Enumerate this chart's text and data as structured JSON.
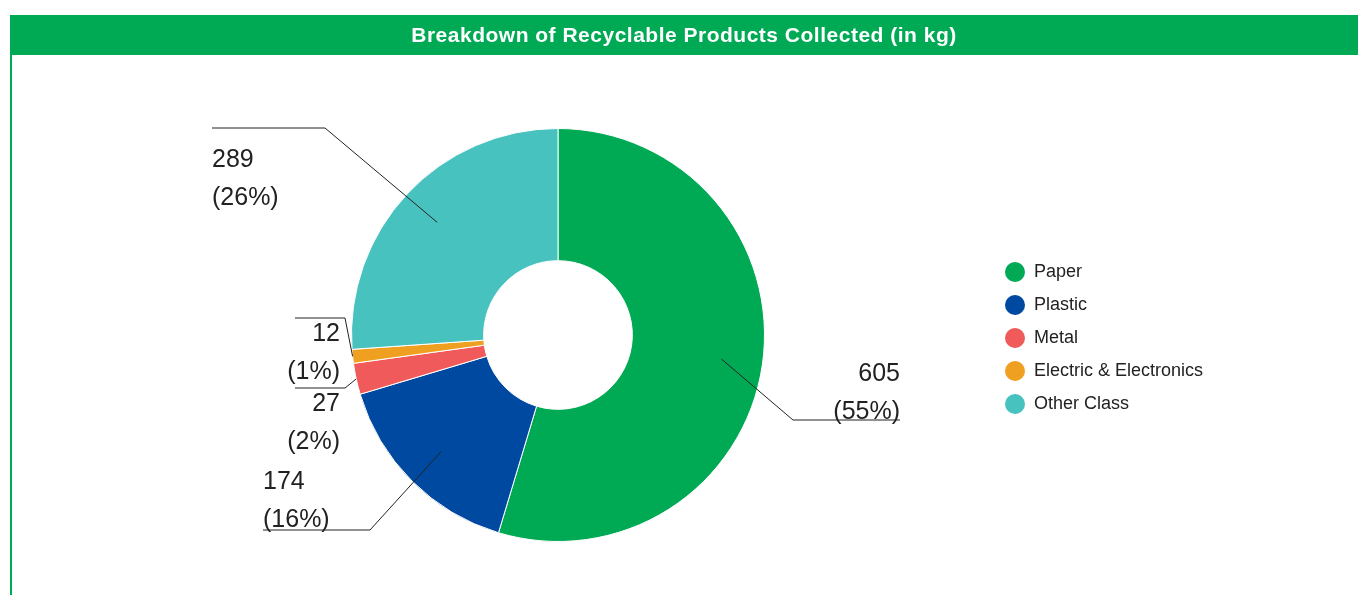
{
  "chart_data": {
    "type": "donut",
    "title": "Breakdown of Recyclable Products Collected (in kg)",
    "categories": [
      "Paper",
      "Plastic",
      "Metal",
      "Electric & Electronics",
      "Other Class"
    ],
    "values": [
      605,
      174,
      27,
      12,
      289
    ],
    "colors": [
      "#00aa55",
      "#0049a0",
      "#f05a5a",
      "#f0a020",
      "#48c2bf"
    ],
    "value_labels": [
      "605\n(55%)",
      "174\n(16%)",
      "27\n(2%)",
      "12\n(1%)",
      "289\n(26%)"
    ],
    "legend": "right"
  }
}
